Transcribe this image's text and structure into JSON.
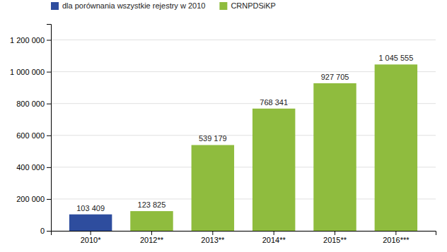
{
  "chart_data": {
    "type": "bar",
    "categories": [
      "2010*",
      "2012**",
      "2013**",
      "2014**",
      "2015**",
      "2016***"
    ],
    "series": [
      {
        "name": "dla porównania wszystkie rejestry w 2010",
        "color": "#2e4d9e",
        "values": [
          103409,
          null,
          null,
          null,
          null,
          null
        ],
        "value_labels": [
          "103 409",
          null,
          null,
          null,
          null,
          null
        ]
      },
      {
        "name": "CRNPDSiKP",
        "color": "#8fbc3e",
        "values": [
          null,
          123825,
          539179,
          768341,
          927705,
          1045555
        ],
        "value_labels": [
          null,
          "123 825",
          "539 179",
          "768 341",
          "927 705",
          "1 045 555"
        ]
      }
    ],
    "ylim": [
      0,
      1300000
    ],
    "yticks": [
      0,
      {
        "value": 200000,
        "label": "200 000"
      },
      {
        "value": 400000,
        "label": "400 000"
      },
      {
        "value": 600000,
        "label": "600 000"
      },
      {
        "value": 800000,
        "label": "800 000"
      },
      {
        "value": 1000000,
        "label": "1 000 000"
      },
      {
        "value": 1200000,
        "label": "1 200 000"
      }
    ],
    "grid": true,
    "legend": "top-left",
    "data_labels": true
  }
}
